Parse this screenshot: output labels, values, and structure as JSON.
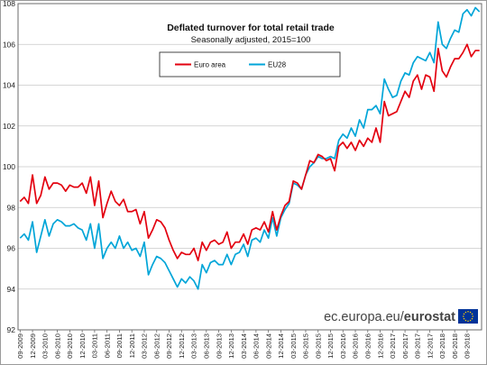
{
  "chart_data": {
    "type": "line",
    "title": "Deflated turnover for total retail trade",
    "subtitle": "Seasonally adjusted, 2015=100",
    "xlabel": "",
    "ylabel": "",
    "ylim": [
      92,
      108
    ],
    "yticks": [
      "92",
      "94",
      "96",
      "98",
      "100",
      "102",
      "104",
      "106",
      "108"
    ],
    "grid": true,
    "legend": "top-center",
    "tick_labels": [
      "09-2009",
      "12-2009",
      "03-2010",
      "06-2010",
      "09-2010",
      "12-2010",
      "03-2011",
      "06-2011",
      "09-2011",
      "12-2011",
      "03-2012",
      "06-2012",
      "09-2012",
      "12-2012",
      "03-2013",
      "06-2013",
      "09-2013",
      "12-2013",
      "03-2014",
      "06-2014",
      "09-2014",
      "12-2014",
      "03-2015",
      "06-2015",
      "09-2015",
      "12-2015",
      "03-2016",
      "06-2016",
      "09-2016",
      "12-2016",
      "03-2017",
      "06-2017",
      "09-2017",
      "12-2017",
      "03-2018",
      "06-2018",
      "09-2018"
    ],
    "series": [
      {
        "name": "Euro area",
        "color": "#e3000f",
        "values": [
          98.3,
          98.5,
          98.2,
          99.6,
          98.2,
          98.6,
          99.5,
          98.9,
          99.2,
          99.2,
          99.1,
          98.8,
          99.1,
          99.0,
          99.0,
          99.2,
          98.7,
          99.5,
          98.1,
          99.3,
          97.5,
          98.2,
          98.8,
          98.3,
          98.1,
          98.4,
          97.8,
          97.8,
          97.9,
          97.2,
          97.8,
          96.5,
          96.9,
          97.4,
          97.3,
          97.0,
          96.4,
          95.9,
          95.5,
          95.8,
          95.7,
          95.7,
          96.0,
          95.4,
          96.3,
          95.9,
          96.3,
          96.4,
          96.2,
          96.3,
          96.8,
          96.0,
          96.3,
          96.3,
          96.7,
          96.2,
          96.9,
          97.0,
          96.9,
          97.3,
          96.8,
          97.8,
          96.9,
          97.6,
          98.1,
          98.3,
          99.3,
          99.2,
          98.9,
          99.6,
          100.3,
          100.2,
          100.6,
          100.5,
          100.3,
          100.4,
          99.8,
          101.0,
          101.2,
          100.9,
          101.2,
          100.8,
          101.3,
          101.0,
          101.4,
          101.2,
          101.9,
          101.2,
          103.2,
          102.5,
          102.6,
          102.7,
          103.2,
          103.7,
          103.4,
          104.2,
          104.5,
          103.8,
          104.5,
          104.4,
          103.7,
          105.8,
          104.7,
          104.4,
          104.9,
          105.3,
          105.3,
          105.6,
          106.0,
          105.4,
          105.7,
          105.7
        ]
      },
      {
        "name": "EU28",
        "color": "#00a5d8",
        "values": [
          96.5,
          96.7,
          96.4,
          97.3,
          95.8,
          96.6,
          97.4,
          96.6,
          97.2,
          97.4,
          97.3,
          97.1,
          97.1,
          97.2,
          97.0,
          96.9,
          96.4,
          97.2,
          96.0,
          97.2,
          95.5,
          96.0,
          96.3,
          96.0,
          96.6,
          96.0,
          96.3,
          95.9,
          96.0,
          95.6,
          96.3,
          94.7,
          95.2,
          95.6,
          95.5,
          95.3,
          94.9,
          94.5,
          94.1,
          94.5,
          94.3,
          94.6,
          94.4,
          94.0,
          95.2,
          94.8,
          95.3,
          95.4,
          95.2,
          95.2,
          95.7,
          95.2,
          95.7,
          95.8,
          96.2,
          95.6,
          96.4,
          96.5,
          96.3,
          96.9,
          96.5,
          97.5,
          96.6,
          97.5,
          97.9,
          98.2,
          99.2,
          99.1,
          98.9,
          99.6,
          100.0,
          100.2,
          100.5,
          100.4,
          100.4,
          100.5,
          100.4,
          101.3,
          101.6,
          101.4,
          101.9,
          101.5,
          102.3,
          101.9,
          102.8,
          102.8,
          103.0,
          102.6,
          104.3,
          103.8,
          103.4,
          103.5,
          104.2,
          104.6,
          104.5,
          105.1,
          105.4,
          105.3,
          105.2,
          105.6,
          105.1,
          107.1,
          106.0,
          105.8,
          106.3,
          106.7,
          106.6,
          107.5,
          107.7,
          107.4,
          107.8,
          107.6
        ]
      }
    ]
  },
  "source": {
    "prefix": "ec.europa.eu/",
    "brand": "eurostat",
    "flag_icon": "eu-flag-icon"
  },
  "colors": {
    "frame": "#6b6b6b",
    "grid": "#c8c8c8",
    "eu_blue": "#003399",
    "eu_gold": "#ffcc00"
  }
}
